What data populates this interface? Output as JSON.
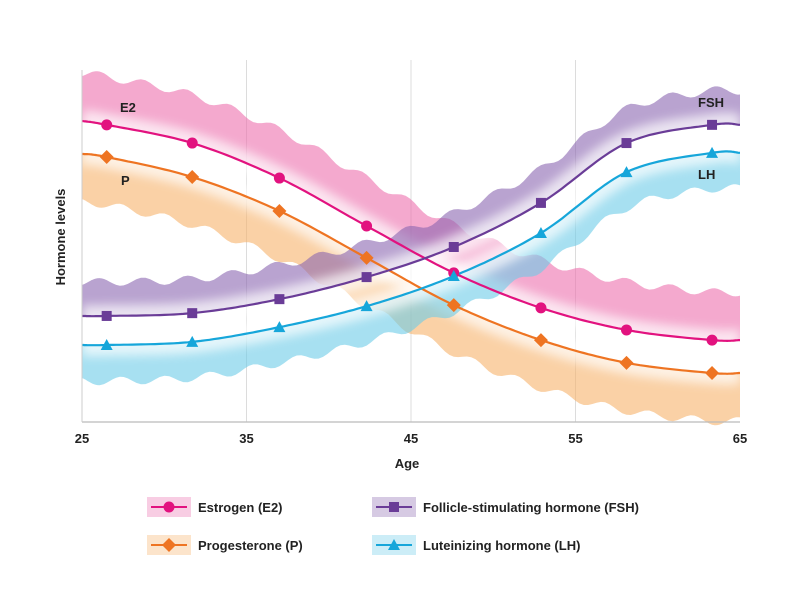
{
  "chart_data": {
    "type": "line",
    "title": "",
    "xlabel": "Age",
    "ylabel": "Hormone levels",
    "xlim": [
      25,
      65
    ],
    "ylim": [
      0,
      100
    ],
    "x_ticks": [
      "25",
      "35",
      "45",
      "55",
      "65"
    ],
    "x_tick_values": [
      25,
      35,
      45,
      55,
      65
    ],
    "y_ticks": [],
    "grid": "vertical at x ticks",
    "legend_position": "bottom",
    "x": [
      25,
      26.5,
      31.7,
      37,
      42.3,
      47.6,
      52.9,
      58.1,
      63.3,
      65
    ],
    "series": [
      {
        "key": "e2",
        "name": "Estrogen (E2)",
        "label": "E2",
        "color": "#e2127f",
        "band_color": "#ec6fae",
        "band": "above",
        "marker": "circle",
        "values": [
          86,
          84.9,
          79.7,
          69.7,
          56,
          42.6,
          32.6,
          26.3,
          23.4,
          23.4
        ]
      },
      {
        "key": "p",
        "name": "Progesterone (P)",
        "label": "P",
        "color": "#ee7422",
        "band_color": "#f6b36b",
        "band": "below",
        "marker": "diamond",
        "values": [
          76.6,
          75.7,
          70,
          60.3,
          46.9,
          33.4,
          23.4,
          16.9,
          14,
          14
        ]
      },
      {
        "key": "fsh",
        "name": "Follicle-stimulating hormone (FSH)",
        "label": "FSH",
        "color": "#6a3c97",
        "band_color": "#8a66b0",
        "band": "above",
        "marker": "square",
        "values": [
          30.3,
          30.3,
          31.1,
          35.1,
          41.4,
          50,
          62.6,
          79.7,
          84.9,
          84.9
        ]
      },
      {
        "key": "lh",
        "name": "Luteinizing hormone (LH)",
        "label": "LH",
        "color": "#16a6da",
        "band_color": "#6ccbe8",
        "band": "below",
        "marker": "triangle",
        "values": [
          22,
          22,
          22.9,
          27.1,
          33.1,
          41.7,
          54,
          71.4,
          76.9,
          76.9
        ]
      }
    ]
  }
}
